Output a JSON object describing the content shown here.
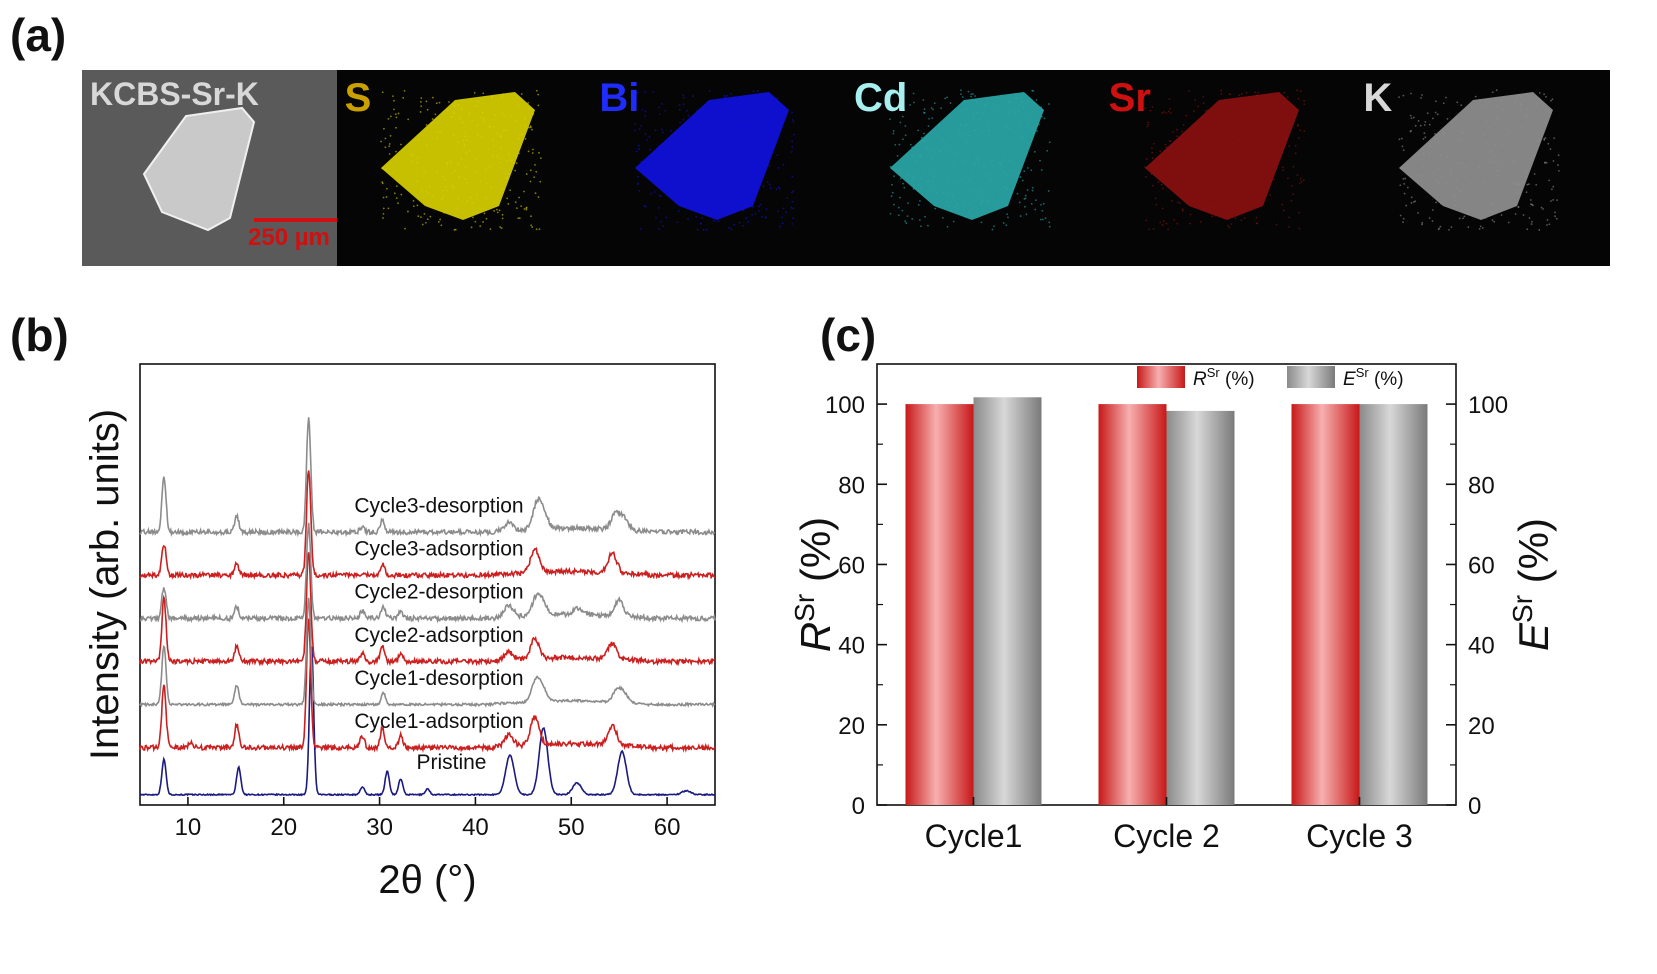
{
  "panels": {
    "a": "(a)",
    "b": "(b)",
    "c": "(c)"
  },
  "eds": {
    "tiles": [
      {
        "label": "KCBS-Sr-K",
        "color": "#d8d8d8",
        "kind": "sem"
      },
      {
        "label": "S",
        "color": "#c9a000",
        "fill": "#d8d000",
        "kind": "map"
      },
      {
        "label": "Bi",
        "color": "#1f2cff",
        "fill": "#1010e0",
        "kind": "map"
      },
      {
        "label": "Cd",
        "color": "#a8f0f0",
        "fill": "#2aa8a8",
        "kind": "map"
      },
      {
        "label": "Sr",
        "color": "#d01010",
        "fill": "#8a1010",
        "kind": "map"
      },
      {
        "label": "K",
        "color": "#d8d8d8",
        "fill": "#909090",
        "kind": "map"
      }
    ],
    "scale_bar": "250 µm",
    "scale_color": "#d01010"
  },
  "chart_data": [
    {
      "type": "line",
      "panel": "b",
      "xlabel": "2θ (°)",
      "ylabel": "Intensity (arb. units)",
      "xlim": [
        5,
        65
      ],
      "xticks": [
        10,
        20,
        30,
        40,
        50,
        60
      ],
      "series": [
        {
          "name": "Pristine",
          "color": "#1a1a80",
          "offset": 0,
          "noise": 0.15,
          "peaks": [
            [
              7.5,
              9
            ],
            [
              15.3,
              7
            ],
            [
              22.9,
              38
            ],
            [
              28.2,
              2
            ],
            [
              30.8,
              6
            ],
            [
              32.2,
              4
            ],
            [
              35,
              1.5
            ],
            [
              43.6,
              10
            ],
            [
              47.1,
              17
            ],
            [
              50.6,
              3
            ],
            [
              55.3,
              11
            ],
            [
              62,
              1
            ]
          ]
        },
        {
          "name": "Cycle1-adsorption",
          "color": "#cc1f1f",
          "offset": 12,
          "noise": 0.6,
          "peaks": [
            [
              7.5,
              16
            ],
            [
              10.3,
              1.5
            ],
            [
              15.1,
              6
            ],
            [
              22.6,
              33
            ],
            [
              28.2,
              3
            ],
            [
              30.3,
              5
            ],
            [
              32.2,
              3
            ],
            [
              43.5,
              3
            ],
            [
              46.2,
              7
            ],
            [
              54.3,
              5
            ]
          ]
        },
        {
          "name": "Cycle1-desorption",
          "color": "#8c8c8c",
          "offset": 23,
          "noise": 0.3,
          "peaks": [
            [
              7.5,
              15
            ],
            [
              15.1,
              5
            ],
            [
              22.6,
              27
            ],
            [
              30.4,
              3
            ],
            [
              46.3,
              5
            ],
            [
              47,
              3
            ],
            [
              54.8,
              3
            ],
            [
              55.5,
              2
            ]
          ]
        },
        {
          "name": "Cycle2-adsorption",
          "color": "#cc1f1f",
          "offset": 34,
          "noise": 0.6,
          "peaks": [
            [
              7.5,
              16
            ],
            [
              15.1,
              4
            ],
            [
              22.6,
              28
            ],
            [
              28.2,
              2
            ],
            [
              30.3,
              4
            ],
            [
              32.2,
              2
            ],
            [
              43.5,
              2
            ],
            [
              46.2,
              5
            ],
            [
              54.3,
              4
            ]
          ]
        },
        {
          "name": "Cycle2-desorption",
          "color": "#8c8c8c",
          "offset": 45,
          "noise": 0.6,
          "peaks": [
            [
              7.5,
              8
            ],
            [
              15.1,
              3
            ],
            [
              22.6,
              24
            ],
            [
              28.2,
              2
            ],
            [
              30.4,
              3
            ],
            [
              32.2,
              2
            ],
            [
              43.5,
              3
            ],
            [
              46.3,
              4
            ],
            [
              47,
              3
            ],
            [
              50.6,
              1.5
            ],
            [
              55,
              4
            ]
          ]
        },
        {
          "name": "Cycle3-adsorption",
          "color": "#cc1f1f",
          "offset": 56,
          "noise": 0.6,
          "peaks": [
            [
              7.5,
              8
            ],
            [
              15.1,
              3
            ],
            [
              22.6,
              27
            ],
            [
              30.3,
              3
            ],
            [
              46.2,
              6
            ],
            [
              54.3,
              5
            ]
          ]
        },
        {
          "name": "Cycle3-desorption",
          "color": "#8c8c8c",
          "offset": 67,
          "noise": 0.6,
          "peaks": [
            [
              7.5,
              14
            ],
            [
              15.1,
              4
            ],
            [
              22.6,
              29
            ],
            [
              28.2,
              1.5
            ],
            [
              30.3,
              3
            ],
            [
              43.5,
              2
            ],
            [
              46.4,
              6
            ],
            [
              47.1,
              4
            ],
            [
              54.6,
              4
            ],
            [
              55.5,
              3
            ]
          ]
        }
      ]
    },
    {
      "type": "bar",
      "panel": "c",
      "categories": [
        "Cycle1",
        "Cycle 2",
        "Cycle 3"
      ],
      "series": [
        {
          "name": "R",
          "sup": "Sr",
          "unit": " (%)",
          "values": [
            100,
            100,
            100
          ],
          "color": "#e23030"
        },
        {
          "name": "E",
          "sup": "Sr",
          "unit": " (%)",
          "values": [
            101.7,
            98.3,
            100
          ],
          "color": "#8e8e8e"
        }
      ],
      "ylabel_left": {
        "main": "R",
        "sup": "Sr",
        "unit": " (%)"
      },
      "ylabel_right": {
        "main": "E",
        "sup": "Sr",
        "unit": " (%)"
      },
      "ylim": [
        0,
        110
      ],
      "yticks": [
        0,
        20,
        40,
        60,
        80,
        100
      ]
    }
  ]
}
